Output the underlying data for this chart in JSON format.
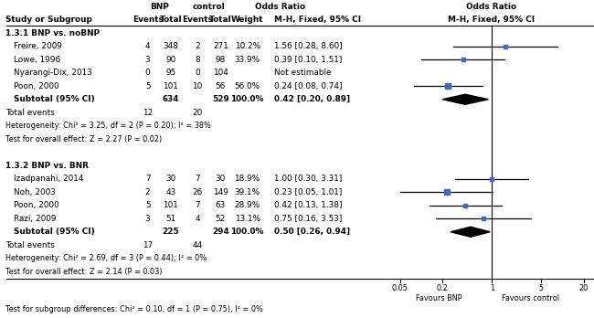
{
  "group1_header": "1.3.1 BNP vs. noBNP",
  "group2_header": "1.3.2 BNP vs. BNR",
  "col_headers_row0": {
    "bnp": "BNP",
    "control": "control",
    "odds_ratio_text": "Odds Ratio"
  },
  "col_headers_row1": {
    "study": "Study or Subgroup",
    "bnp_e": "Events",
    "bnp_n": "Total",
    "ctrl_e": "Events",
    "ctrl_n": "Total",
    "weight": "Weight",
    "or_ci": "M-H, Fixed, 95% CI"
  },
  "plot_header_row0": "Odds Ratio",
  "plot_header_row1": "M-H, Fixed, 95% CI",
  "group1_studies": [
    {
      "name": "Freire, 2009",
      "bnp_e": 4,
      "bnp_n": 348,
      "ctrl_e": 2,
      "ctrl_n": 271,
      "weight": "10.2%",
      "or_text": "1.56 [0.28, 8.60]",
      "or": 1.56,
      "ci_lo": 0.28,
      "ci_hi": 8.6
    },
    {
      "name": "Lowe, 1996",
      "bnp_e": 3,
      "bnp_n": 90,
      "ctrl_e": 8,
      "ctrl_n": 98,
      "weight": "33.9%",
      "or_text": "0.39 [0.10, 1.51]",
      "or": 0.39,
      "ci_lo": 0.1,
      "ci_hi": 1.51
    },
    {
      "name": "Nyarangi-Dix, 2013",
      "bnp_e": 0,
      "bnp_n": 95,
      "ctrl_e": 0,
      "ctrl_n": 104,
      "weight": "",
      "or_text": "Not estimable",
      "or": null,
      "ci_lo": null,
      "ci_hi": null
    },
    {
      "name": "Poon, 2000",
      "bnp_e": 5,
      "bnp_n": 101,
      "ctrl_e": 10,
      "ctrl_n": 56,
      "weight": "56.0%",
      "or_text": "0.24 [0.08, 0.74]",
      "or": 0.24,
      "ci_lo": 0.08,
      "ci_hi": 0.74
    }
  ],
  "group1_subtotal": {
    "bnp_n": 634,
    "ctrl_n": 529,
    "weight": "100.0%",
    "or_text": "0.42 [0.20, 0.89]",
    "or": 0.42,
    "ci_lo": 0.2,
    "ci_hi": 0.89,
    "total_bnp": 12,
    "total_ctrl": 20
  },
  "group1_stats": [
    "Heterogeneity: Chi² = 3.25, df = 2 (P = 0.20); I² = 38%",
    "Test for overall effect: Z = 2.27 (P = 0.02)"
  ],
  "group2_studies": [
    {
      "name": "Izadpanahi, 2014",
      "bnp_e": 7,
      "bnp_n": 30,
      "ctrl_e": 7,
      "ctrl_n": 30,
      "weight": "18.9%",
      "or_text": "1.00 [0.30, 3.31]",
      "or": 1.0,
      "ci_lo": 0.3,
      "ci_hi": 3.31
    },
    {
      "name": "Noh, 2003",
      "bnp_e": 2,
      "bnp_n": 43,
      "ctrl_e": 26,
      "ctrl_n": 149,
      "weight": "39.1%",
      "or_text": "0.23 [0.05, 1.01]",
      "or": 0.23,
      "ci_lo": 0.05,
      "ci_hi": 1.01
    },
    {
      "name": "Poon, 2000",
      "bnp_e": 5,
      "bnp_n": 101,
      "ctrl_e": 7,
      "ctrl_n": 63,
      "weight": "28.9%",
      "or_text": "0.42 [0.13, 1.38]",
      "or": 0.42,
      "ci_lo": 0.13,
      "ci_hi": 1.38
    },
    {
      "name": "Razi, 2009",
      "bnp_e": 3,
      "bnp_n": 51,
      "ctrl_e": 4,
      "ctrl_n": 52,
      "weight": "13.1%",
      "or_text": "0.75 [0.16, 3.53]",
      "or": 0.75,
      "ci_lo": 0.16,
      "ci_hi": 3.53
    }
  ],
  "group2_subtotal": {
    "bnp_n": 225,
    "ctrl_n": 294,
    "weight": "100.0%",
    "or_text": "0.50 [0.26, 0.94]",
    "or": 0.5,
    "ci_lo": 0.26,
    "ci_hi": 0.94,
    "total_bnp": 17,
    "total_ctrl": 44
  },
  "group2_stats": [
    "Heterogeneity: Chi² = 2.69, df = 3 (P = 0.44); I² = 0%",
    "Test for overall effect: Z = 2.14 (P = 0.03)"
  ],
  "subgroup_test": "Test for subgroup differences: Chi² = 0.10, df = 1 (P = 0.75), I² = 0%",
  "xticks": [
    0.05,
    0.2,
    1,
    5,
    20
  ],
  "xtick_labels": [
    "0.05",
    "0.2",
    "1",
    "5",
    "20"
  ],
  "xlabel_left": "Favours BNP",
  "xlabel_right": "Favours control",
  "square_color": "#4466bb",
  "diamond_color": "#000000",
  "ci_color": "#000000"
}
